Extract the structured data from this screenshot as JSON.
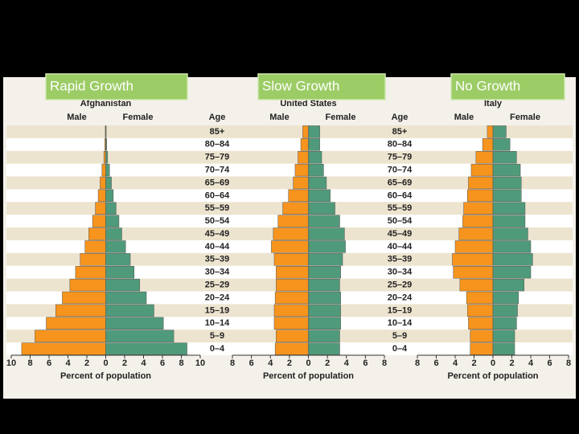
{
  "chart_data": [
    {
      "type": "pyramid",
      "title": "Afghanistan",
      "subtitle": "Rapid Growth",
      "xlabel": "Percent of population",
      "series": [
        {
          "name": "Male",
          "color": "#f7941d",
          "values": [
            0.05,
            0.1,
            0.2,
            0.4,
            0.6,
            0.8,
            1.1,
            1.4,
            1.8,
            2.2,
            2.7,
            3.2,
            3.8,
            4.6,
            5.3,
            6.3,
            7.5,
            8.9
          ]
        },
        {
          "name": "Female",
          "color": "#4f9a7a",
          "values": [
            0.05,
            0.1,
            0.2,
            0.4,
            0.6,
            0.8,
            1.1,
            1.4,
            1.7,
            2.1,
            2.6,
            3.0,
            3.6,
            4.3,
            5.1,
            6.1,
            7.2,
            8.6
          ]
        }
      ],
      "xlim": [
        -10,
        10
      ],
      "xticks": [
        {
          "value": -10,
          "label": "10"
        },
        {
          "value": -8,
          "label": "8"
        },
        {
          "value": -6,
          "label": "6"
        },
        {
          "value": -4,
          "label": "4"
        },
        {
          "value": -2,
          "label": "2"
        },
        0,
        2,
        4,
        6,
        8,
        10
      ]
    },
    {
      "type": "pyramid",
      "title": "United States",
      "subtitle": "Slow Growth",
      "xlabel": "Percent of population",
      "age_label": "Age",
      "categories": [
        "85+",
        "80–84",
        "75–79",
        "70–74",
        "65–69",
        "60–64",
        "55–59",
        "50–54",
        "45–49",
        "40–44",
        "35–39",
        "30–34",
        "25–29",
        "20–24",
        "15–19",
        "10–14",
        "5–9",
        "0–4"
      ],
      "series": [
        {
          "name": "Male",
          "color": "#f7941d",
          "values": [
            0.6,
            0.8,
            1.1,
            1.4,
            1.6,
            2.1,
            2.7,
            3.2,
            3.7,
            3.9,
            3.6,
            3.4,
            3.4,
            3.5,
            3.6,
            3.6,
            3.4,
            3.5
          ]
        },
        {
          "name": "Female",
          "color": "#4f9a7a",
          "values": [
            1.2,
            1.2,
            1.4,
            1.6,
            1.9,
            2.3,
            2.8,
            3.3,
            3.8,
            3.9,
            3.6,
            3.4,
            3.3,
            3.4,
            3.4,
            3.4,
            3.3,
            3.3
          ]
        }
      ],
      "xlim": [
        -8,
        8
      ],
      "xticks": [
        {
          "value": -8,
          "label": "8"
        },
        {
          "value": -6,
          "label": "6"
        },
        {
          "value": -4,
          "label": "4"
        },
        {
          "value": -2,
          "label": "2"
        },
        0,
        2,
        4,
        6,
        8
      ]
    },
    {
      "type": "pyramid",
      "title": "Italy",
      "subtitle": "No Growth",
      "xlabel": "Percent of population",
      "age_label": "Age",
      "categories": [
        "85+",
        "80–84",
        "75–79",
        "70–74",
        "65–69",
        "60–64",
        "55–59",
        "50–54",
        "45–49",
        "40–44",
        "35–39",
        "30–34",
        "25–29",
        "20–24",
        "15–19",
        "10–14",
        "5–9",
        "0–4"
      ],
      "series": [
        {
          "name": "Male",
          "color": "#f7941d",
          "values": [
            0.6,
            1.1,
            1.8,
            2.3,
            2.6,
            2.7,
            3.1,
            3.2,
            3.6,
            4.0,
            4.3,
            4.2,
            3.5,
            2.8,
            2.7,
            2.6,
            2.4,
            2.4
          ]
        },
        {
          "name": "Female",
          "color": "#4f9a7a",
          "values": [
            1.4,
            1.8,
            2.5,
            2.9,
            3.0,
            3.0,
            3.4,
            3.4,
            3.7,
            4.0,
            4.2,
            4.0,
            3.3,
            2.7,
            2.6,
            2.5,
            2.3,
            2.3
          ]
        }
      ],
      "xlim": [
        -8,
        8
      ],
      "xticks": [
        {
          "value": -8,
          "label": "8"
        },
        {
          "value": -6,
          "label": "6"
        },
        {
          "value": -4,
          "label": "4"
        },
        {
          "value": -2,
          "label": "2"
        },
        0,
        2,
        4,
        6,
        8
      ]
    }
  ]
}
